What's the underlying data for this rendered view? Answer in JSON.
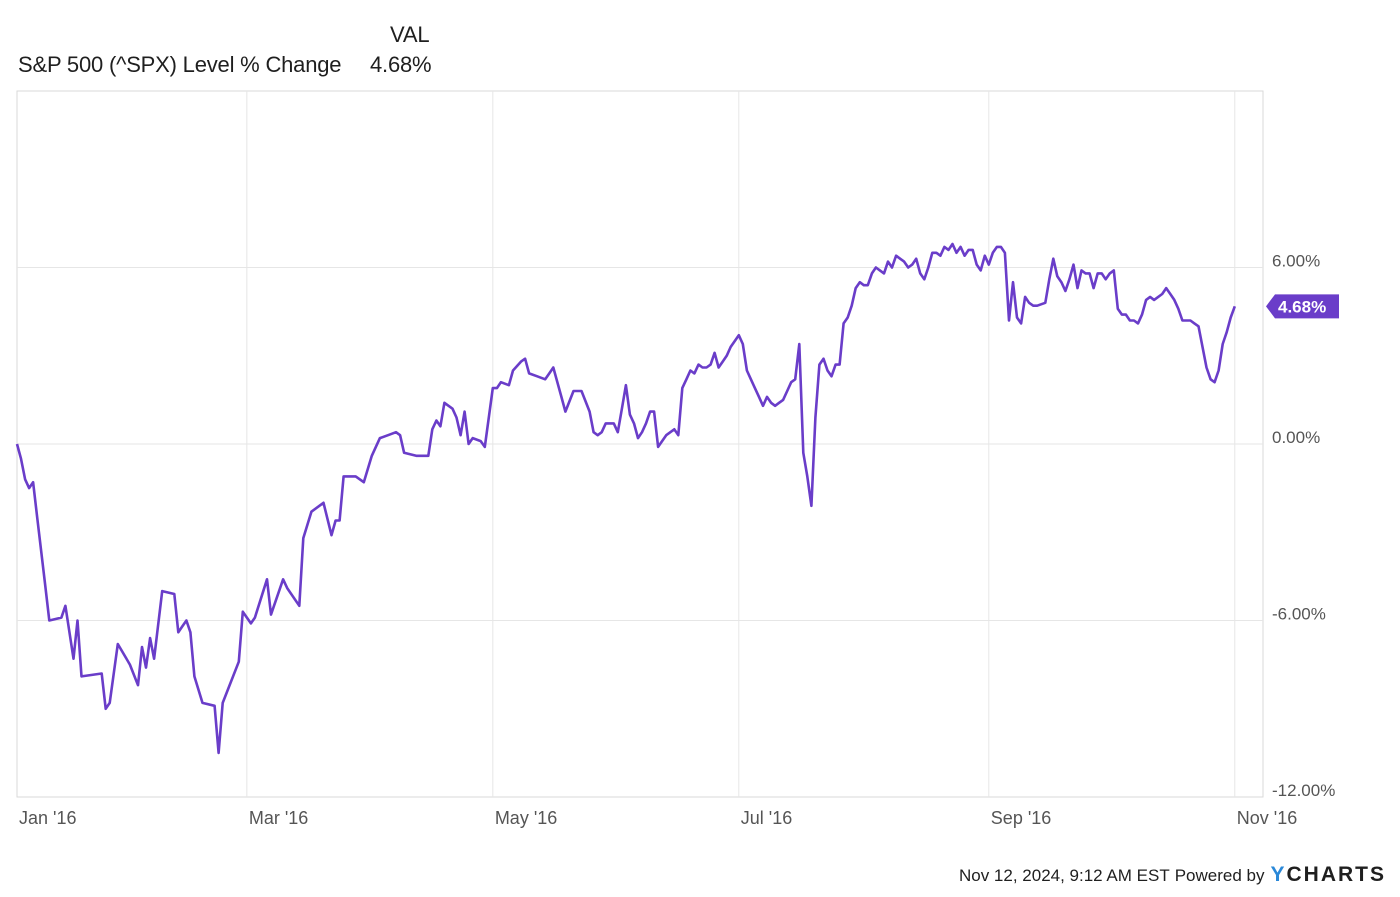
{
  "legend": {
    "column_header": "VAL",
    "series_label": "S&P 500 (^SPX) Level % Change",
    "series_value": "4.68%"
  },
  "footer": {
    "timestamp": "Nov 12, 2024, 9:12 AM EST",
    "powered_by": "Powered by",
    "brand_first": "Y",
    "brand_rest": "CHARTS"
  },
  "colors": {
    "line": "#6a3dc9",
    "grid": "#e6e6e6",
    "frame": "#d9d9d9",
    "label_bg": "#6a3dc9",
    "label_text": "#ffffff"
  },
  "chart_data": {
    "type": "line",
    "ylim": [
      -12,
      12
    ],
    "yticks": [
      6,
      0,
      -6,
      -12
    ],
    "ytick_labels": [
      "6.00%",
      "0.00%",
      "-6.00%",
      "-12.00%"
    ],
    "xticks": [
      "2016-01-04",
      "2016-03-01",
      "2016-05-01",
      "2016-07-01",
      "2016-09-01",
      "2016-11-01"
    ],
    "xtick_labels": [
      "Jan '16",
      "Mar '16",
      "May '16",
      "Jul '16",
      "Sep '16",
      "Nov '16"
    ],
    "xlim": [
      "2016-01-04",
      "2016-11-08"
    ],
    "last_value_label": "4.68%",
    "series": [
      {
        "name": "S&P 500 (^SPX) Level % Change",
        "points": [
          [
            "2016-01-04",
            0.0
          ],
          [
            "2016-01-05",
            -0.5
          ],
          [
            "2016-01-06",
            -1.2
          ],
          [
            "2016-01-07",
            -1.5
          ],
          [
            "2016-01-08",
            -1.3
          ],
          [
            "2016-01-09",
            -2.5
          ],
          [
            "2016-01-11",
            -4.8
          ],
          [
            "2016-01-12",
            -6.0
          ],
          [
            "2016-01-15",
            -5.9
          ],
          [
            "2016-01-16",
            -5.5
          ],
          [
            "2016-01-18",
            -7.3
          ],
          [
            "2016-01-19",
            -6.0
          ],
          [
            "2016-01-20",
            -7.9
          ],
          [
            "2016-01-25",
            -7.8
          ],
          [
            "2016-01-26",
            -9.0
          ],
          [
            "2016-01-27",
            -8.8
          ],
          [
            "2016-01-29",
            -6.8
          ],
          [
            "2016-02-01",
            -7.5
          ],
          [
            "2016-02-03",
            -8.2
          ],
          [
            "2016-02-04",
            -6.9
          ],
          [
            "2016-02-05",
            -7.6
          ],
          [
            "2016-02-06",
            -6.6
          ],
          [
            "2016-02-07",
            -7.3
          ],
          [
            "2016-02-09",
            -5.0
          ],
          [
            "2016-02-12",
            -5.1
          ],
          [
            "2016-02-13",
            -6.4
          ],
          [
            "2016-02-14",
            -6.2
          ],
          [
            "2016-02-15",
            -6.0
          ],
          [
            "2016-02-16",
            -6.4
          ],
          [
            "2016-02-17",
            -7.9
          ],
          [
            "2016-02-19",
            -8.8
          ],
          [
            "2016-02-22",
            -8.9
          ],
          [
            "2016-02-23",
            -10.5
          ],
          [
            "2016-02-24",
            -8.8
          ],
          [
            "2016-02-28",
            -7.4
          ],
          [
            "2016-02-29",
            -5.7
          ],
          [
            "2016-03-02",
            -6.1
          ],
          [
            "2016-03-03",
            -5.9
          ],
          [
            "2016-03-06",
            -4.6
          ],
          [
            "2016-03-07",
            -5.8
          ],
          [
            "2016-03-10",
            -4.6
          ],
          [
            "2016-03-11",
            -4.9
          ],
          [
            "2016-03-14",
            -5.5
          ],
          [
            "2016-03-15",
            -3.2
          ],
          [
            "2016-03-17",
            -2.3
          ],
          [
            "2016-03-19",
            -2.1
          ],
          [
            "2016-03-20",
            -2.0
          ],
          [
            "2016-03-22",
            -3.1
          ],
          [
            "2016-03-23",
            -2.6
          ],
          [
            "2016-03-24",
            -2.6
          ],
          [
            "2016-03-25",
            -1.1
          ],
          [
            "2016-03-28",
            -1.1
          ],
          [
            "2016-03-30",
            -1.3
          ],
          [
            "2016-04-01",
            -0.4
          ],
          [
            "2016-04-03",
            0.2
          ],
          [
            "2016-04-05",
            0.3
          ],
          [
            "2016-04-07",
            0.4
          ],
          [
            "2016-04-08",
            0.3
          ],
          [
            "2016-04-09",
            -0.3
          ],
          [
            "2016-04-12",
            -0.4
          ],
          [
            "2016-04-15",
            -0.4
          ],
          [
            "2016-04-16",
            0.5
          ],
          [
            "2016-04-17",
            0.8
          ],
          [
            "2016-04-18",
            0.6
          ],
          [
            "2016-04-19",
            1.4
          ],
          [
            "2016-04-21",
            1.2
          ],
          [
            "2016-04-22",
            0.9
          ],
          [
            "2016-04-23",
            0.3
          ],
          [
            "2016-04-24",
            1.1
          ],
          [
            "2016-04-25",
            0.0
          ],
          [
            "2016-04-26",
            0.2
          ],
          [
            "2016-04-28",
            0.1
          ],
          [
            "2016-04-29",
            -0.1
          ],
          [
            "2016-05-01",
            1.9
          ],
          [
            "2016-05-02",
            1.9
          ],
          [
            "2016-05-03",
            2.1
          ],
          [
            "2016-05-05",
            2.0
          ],
          [
            "2016-05-06",
            2.5
          ],
          [
            "2016-05-08",
            2.8
          ],
          [
            "2016-05-09",
            2.9
          ],
          [
            "2016-05-10",
            2.4
          ],
          [
            "2016-05-12",
            2.3
          ],
          [
            "2016-05-14",
            2.2
          ],
          [
            "2016-05-15",
            2.4
          ],
          [
            "2016-05-16",
            2.6
          ],
          [
            "2016-05-18",
            1.6
          ],
          [
            "2016-05-19",
            1.1
          ],
          [
            "2016-05-21",
            1.8
          ],
          [
            "2016-05-23",
            1.8
          ],
          [
            "2016-05-25",
            1.1
          ],
          [
            "2016-05-26",
            0.4
          ],
          [
            "2016-05-27",
            0.3
          ],
          [
            "2016-05-28",
            0.4
          ],
          [
            "2016-05-29",
            0.7
          ],
          [
            "2016-05-31",
            0.7
          ],
          [
            "2016-06-01",
            0.4
          ],
          [
            "2016-06-02",
            1.2
          ],
          [
            "2016-06-03",
            2.0
          ],
          [
            "2016-06-04",
            1.0
          ],
          [
            "2016-06-05",
            0.7
          ],
          [
            "2016-06-06",
            0.2
          ],
          [
            "2016-06-07",
            0.4
          ],
          [
            "2016-06-08",
            0.7
          ],
          [
            "2016-06-09",
            1.1
          ],
          [
            "2016-06-10",
            1.1
          ],
          [
            "2016-06-11",
            -0.1
          ],
          [
            "2016-06-13",
            0.3
          ],
          [
            "2016-06-15",
            0.5
          ],
          [
            "2016-06-16",
            0.3
          ],
          [
            "2016-06-17",
            1.9
          ],
          [
            "2016-06-18",
            2.2
          ],
          [
            "2016-06-19",
            2.5
          ],
          [
            "2016-06-20",
            2.4
          ],
          [
            "2016-06-21",
            2.7
          ],
          [
            "2016-06-22",
            2.6
          ],
          [
            "2016-06-23",
            2.6
          ],
          [
            "2016-06-24",
            2.7
          ],
          [
            "2016-06-25",
            3.1
          ],
          [
            "2016-06-26",
            2.6
          ],
          [
            "2016-06-27",
            2.8
          ],
          [
            "2016-06-28",
            3.0
          ],
          [
            "2016-06-29",
            3.3
          ],
          [
            "2016-06-30",
            3.5
          ],
          [
            "2016-07-01",
            3.7
          ],
          [
            "2016-07-02",
            3.4
          ],
          [
            "2016-07-03",
            2.5
          ],
          [
            "2016-07-04",
            2.2
          ],
          [
            "2016-07-05",
            1.9
          ],
          [
            "2016-07-06",
            1.6
          ],
          [
            "2016-07-07",
            1.3
          ],
          [
            "2016-07-08",
            1.6
          ],
          [
            "2016-07-09",
            1.4
          ],
          [
            "2016-07-10",
            1.3
          ],
          [
            "2016-07-11",
            1.4
          ],
          [
            "2016-07-12",
            1.5
          ],
          [
            "2016-07-13",
            1.8
          ],
          [
            "2016-07-14",
            2.1
          ],
          [
            "2016-07-15",
            2.2
          ],
          [
            "2016-07-16",
            3.4
          ],
          [
            "2016-07-17",
            -0.3
          ],
          [
            "2016-07-18",
            -1.1
          ],
          [
            "2016-07-19",
            -2.1
          ],
          [
            "2016-07-20",
            0.9
          ],
          [
            "2016-07-21",
            2.7
          ],
          [
            "2016-07-22",
            2.9
          ],
          [
            "2016-07-23",
            2.5
          ],
          [
            "2016-07-24",
            2.3
          ],
          [
            "2016-07-25",
            2.7
          ],
          [
            "2016-07-26",
            2.7
          ],
          [
            "2016-07-27",
            4.1
          ],
          [
            "2016-07-28",
            4.3
          ],
          [
            "2016-07-29",
            4.7
          ],
          [
            "2016-07-30",
            5.3
          ],
          [
            "2016-07-31",
            5.5
          ],
          [
            "2016-08-01",
            5.4
          ],
          [
            "2016-08-02",
            5.4
          ],
          [
            "2016-08-03",
            5.8
          ],
          [
            "2016-08-04",
            6.0
          ],
          [
            "2016-08-05",
            5.9
          ],
          [
            "2016-08-06",
            5.8
          ],
          [
            "2016-08-07",
            6.2
          ],
          [
            "2016-08-08",
            6.0
          ],
          [
            "2016-08-09",
            6.4
          ],
          [
            "2016-08-10",
            6.3
          ],
          [
            "2016-08-11",
            6.2
          ],
          [
            "2016-08-12",
            6.0
          ],
          [
            "2016-08-13",
            6.1
          ],
          [
            "2016-08-14",
            6.3
          ],
          [
            "2016-08-15",
            5.8
          ],
          [
            "2016-08-16",
            5.6
          ],
          [
            "2016-08-17",
            6.0
          ],
          [
            "2016-08-18",
            6.5
          ],
          [
            "2016-08-19",
            6.5
          ],
          [
            "2016-08-20",
            6.4
          ],
          [
            "2016-08-21",
            6.7
          ],
          [
            "2016-08-22",
            6.6
          ],
          [
            "2016-08-23",
            6.8
          ],
          [
            "2016-08-24",
            6.5
          ],
          [
            "2016-08-25",
            6.7
          ],
          [
            "2016-08-26",
            6.4
          ],
          [
            "2016-08-27",
            6.6
          ],
          [
            "2016-08-28",
            6.6
          ],
          [
            "2016-08-29",
            6.1
          ],
          [
            "2016-08-30",
            5.9
          ],
          [
            "2016-08-31",
            6.4
          ],
          [
            "2016-09-01",
            6.1
          ],
          [
            "2016-09-02",
            6.5
          ],
          [
            "2016-09-03",
            6.7
          ],
          [
            "2016-09-04",
            6.7
          ],
          [
            "2016-09-05",
            6.5
          ],
          [
            "2016-09-06",
            4.2
          ],
          [
            "2016-09-07",
            5.5
          ],
          [
            "2016-09-08",
            4.3
          ],
          [
            "2016-09-09",
            4.1
          ],
          [
            "2016-09-10",
            5.0
          ],
          [
            "2016-09-11",
            4.8
          ],
          [
            "2016-09-12",
            4.7
          ],
          [
            "2016-09-13",
            4.7
          ],
          [
            "2016-09-15",
            4.8
          ],
          [
            "2016-09-16",
            5.6
          ],
          [
            "2016-09-17",
            6.3
          ],
          [
            "2016-09-18",
            5.7
          ],
          [
            "2016-09-19",
            5.5
          ],
          [
            "2016-09-20",
            5.2
          ],
          [
            "2016-09-21",
            5.6
          ],
          [
            "2016-09-22",
            6.1
          ],
          [
            "2016-09-23",
            5.3
          ],
          [
            "2016-09-24",
            5.9
          ],
          [
            "2016-09-25",
            5.8
          ],
          [
            "2016-09-26",
            5.8
          ],
          [
            "2016-09-27",
            5.3
          ],
          [
            "2016-09-28",
            5.8
          ],
          [
            "2016-09-29",
            5.8
          ],
          [
            "2016-09-30",
            5.6
          ],
          [
            "2016-10-01",
            5.8
          ],
          [
            "2016-10-02",
            5.9
          ],
          [
            "2016-10-03",
            4.6
          ],
          [
            "2016-10-04",
            4.4
          ],
          [
            "2016-10-05",
            4.4
          ],
          [
            "2016-10-06",
            4.2
          ],
          [
            "2016-10-07",
            4.2
          ],
          [
            "2016-10-08",
            4.1
          ],
          [
            "2016-10-09",
            4.4
          ],
          [
            "2016-10-10",
            4.9
          ],
          [
            "2016-10-11",
            5.0
          ],
          [
            "2016-10-12",
            4.9
          ],
          [
            "2016-10-13",
            5.0
          ],
          [
            "2016-10-14",
            5.1
          ],
          [
            "2016-10-15",
            5.3
          ],
          [
            "2016-10-16",
            5.1
          ],
          [
            "2016-10-17",
            4.9
          ],
          [
            "2016-10-18",
            4.6
          ],
          [
            "2016-10-19",
            4.2
          ],
          [
            "2016-10-20",
            4.2
          ],
          [
            "2016-10-21",
            4.2
          ],
          [
            "2016-10-22",
            4.1
          ],
          [
            "2016-10-23",
            4.0
          ],
          [
            "2016-10-24",
            3.3
          ],
          [
            "2016-10-25",
            2.6
          ],
          [
            "2016-10-26",
            2.2
          ],
          [
            "2016-10-27",
            2.1
          ],
          [
            "2016-10-28",
            2.5
          ],
          [
            "2016-10-29",
            3.4
          ],
          [
            "2016-10-30",
            3.8
          ],
          [
            "2016-10-31",
            4.3
          ],
          [
            "2016-11-01",
            4.68
          ]
        ]
      }
    ]
  }
}
